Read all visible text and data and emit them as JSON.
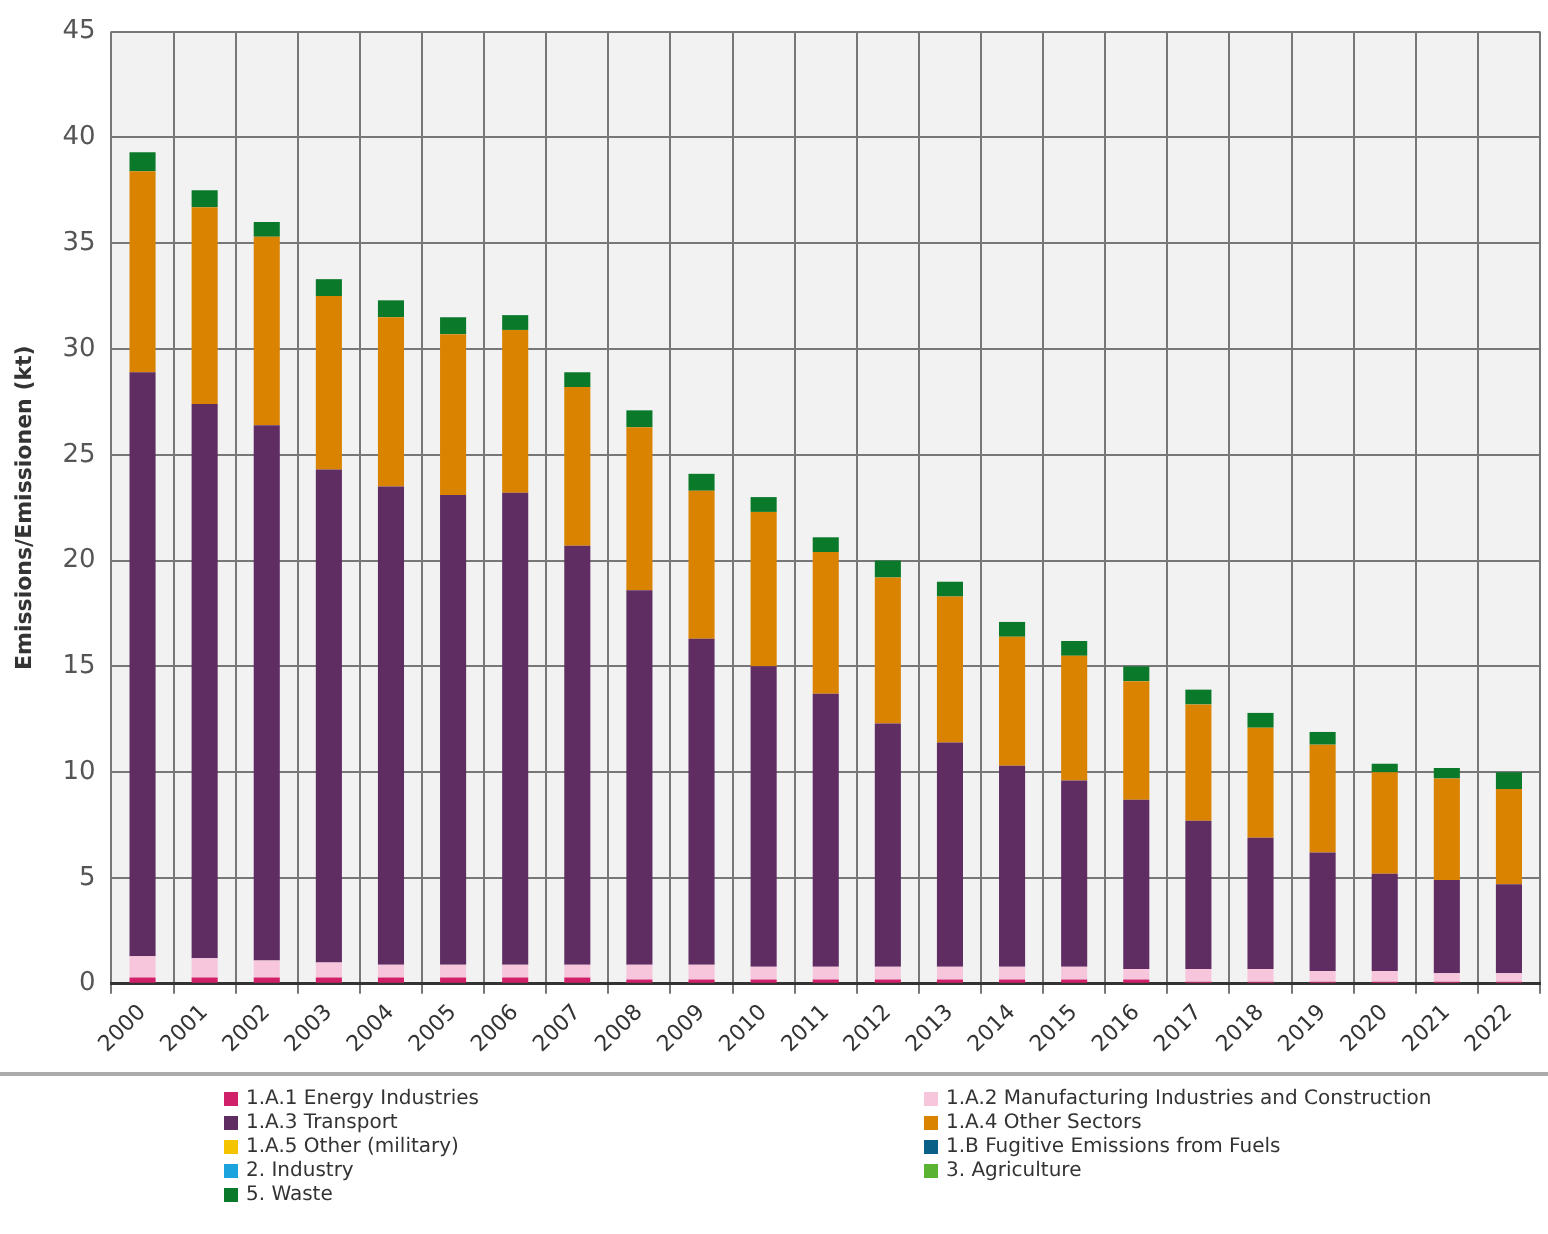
{
  "chart_data": {
    "type": "bar",
    "stacked": true,
    "ylabel": "Emissions/Emissionen (kt)",
    "categories": [
      "2000",
      "2001",
      "2002",
      "2003",
      "2004",
      "2005",
      "2006",
      "2007",
      "2008",
      "2009",
      "2010",
      "2011",
      "2012",
      "2013",
      "2014",
      "2015",
      "2016",
      "2017",
      "2018",
      "2019",
      "2020",
      "2021",
      "2022"
    ],
    "series": [
      {
        "name": "1.A.1 Energy Industries",
        "color": "#d0206a",
        "values": [
          0.3,
          0.3,
          0.3,
          0.3,
          0.3,
          0.3,
          0.3,
          0.3,
          0.2,
          0.2,
          0.2,
          0.2,
          0.2,
          0.2,
          0.2,
          0.2,
          0.2,
          0.1,
          0.1,
          0.1,
          0.1,
          0.1,
          0.1
        ]
      },
      {
        "name": "1.A.2 Manufacturing Industries and Construction",
        "color": "#f7c6dc",
        "values": [
          1.0,
          0.9,
          0.8,
          0.7,
          0.6,
          0.6,
          0.6,
          0.6,
          0.7,
          0.7,
          0.6,
          0.6,
          0.6,
          0.6,
          0.6,
          0.6,
          0.5,
          0.6,
          0.6,
          0.5,
          0.5,
          0.4,
          0.4
        ]
      },
      {
        "name": "1.A.3 Transport",
        "color": "#5f2d62",
        "values": [
          27.6,
          26.2,
          25.3,
          23.3,
          22.6,
          22.2,
          22.3,
          19.8,
          17.7,
          15.4,
          14.2,
          12.9,
          11.5,
          10.6,
          9.5,
          8.8,
          8.0,
          7.0,
          6.2,
          5.6,
          4.6,
          4.4,
          4.2
        ]
      },
      {
        "name": "1.A.4 Other Sectors",
        "color": "#d98300",
        "values": [
          9.5,
          9.3,
          8.9,
          8.2,
          8.0,
          7.6,
          7.7,
          7.5,
          7.7,
          7.0,
          7.3,
          6.7,
          6.9,
          6.9,
          6.1,
          5.9,
          5.6,
          5.5,
          5.2,
          5.1,
          4.8,
          4.8,
          4.5
        ]
      },
      {
        "name": "1.A.5 Other (military)",
        "color": "#f5c400",
        "values": [
          0,
          0,
          0,
          0,
          0,
          0,
          0,
          0,
          0,
          0,
          0,
          0,
          0,
          0,
          0,
          0,
          0,
          0,
          0,
          0,
          0,
          0,
          0
        ]
      },
      {
        "name": "1.B Fugitive Emissions from Fuels",
        "color": "#0a5f86",
        "values": [
          0,
          0,
          0,
          0,
          0,
          0,
          0,
          0,
          0,
          0,
          0,
          0,
          0,
          0,
          0,
          0,
          0,
          0,
          0,
          0,
          0,
          0,
          0
        ]
      },
      {
        "name": "2. Industry",
        "color": "#1aa3dc",
        "values": [
          0,
          0,
          0,
          0,
          0,
          0,
          0,
          0,
          0,
          0,
          0,
          0,
          0,
          0,
          0,
          0,
          0,
          0,
          0,
          0,
          0,
          0,
          0
        ]
      },
      {
        "name": "3. Agriculture",
        "color": "#5bb334",
        "values": [
          0,
          0,
          0,
          0,
          0,
          0,
          0,
          0,
          0,
          0,
          0,
          0,
          0,
          0,
          0,
          0,
          0,
          0,
          0,
          0,
          0,
          0,
          0
        ]
      },
      {
        "name": "5. Waste",
        "color": "#0a7a2a",
        "values": [
          0.9,
          0.8,
          0.7,
          0.8,
          0.8,
          0.8,
          0.7,
          0.7,
          0.8,
          0.8,
          0.7,
          0.7,
          0.8,
          0.7,
          0.7,
          0.7,
          0.7,
          0.7,
          0.7,
          0.6,
          0.4,
          0.5,
          0.8
        ]
      }
    ],
    "ylim": [
      0,
      45
    ],
    "yticks": [
      0,
      5,
      10,
      15,
      20,
      25,
      30,
      35,
      40,
      45
    ],
    "grid": true,
    "legend": "bottom"
  }
}
